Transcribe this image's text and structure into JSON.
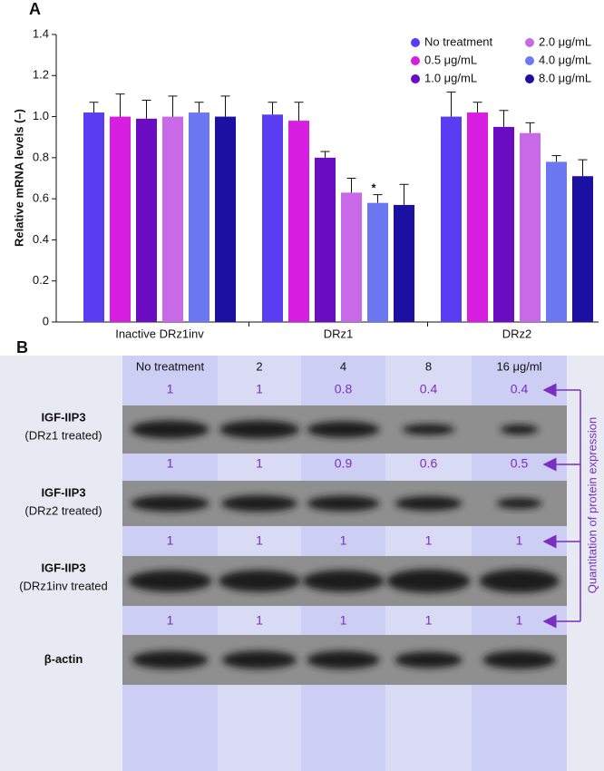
{
  "panel_labels": [
    "A",
    "B"
  ],
  "chart_data": {
    "type": "bar",
    "y_label": "Relative mRNA levels (–)",
    "categories": [
      "Inactive DRz1inv",
      "DRz1",
      "DRz2"
    ],
    "series": [
      {
        "name": "No treatment",
        "color": "#5a3cf2",
        "values": [
          1.02,
          1.01,
          1.0
        ],
        "errors": [
          0.05,
          0.06,
          0.12
        ]
      },
      {
        "name": "0.5 μg/mL",
        "color": "#d81ee0",
        "values": [
          1.0,
          0.98,
          1.02
        ],
        "errors": [
          0.11,
          0.09,
          0.05
        ]
      },
      {
        "name": "1.0 μg/mL",
        "color": "#6a0cc2",
        "values": [
          0.99,
          0.8,
          0.95
        ],
        "errors": [
          0.09,
          0.03,
          0.08
        ]
      },
      {
        "name": "2.0 μg/mL",
        "color": "#c86ae8",
        "values": [
          1.0,
          0.63,
          0.92
        ],
        "errors": [
          0.1,
          0.07,
          0.05
        ]
      },
      {
        "name": "4.0 μg/mL",
        "color": "#6b78f2",
        "values": [
          1.02,
          0.58,
          0.78
        ],
        "errors": [
          0.05,
          0.04,
          0.03
        ]
      },
      {
        "name": "8.0 μg/mL",
        "color": "#1c10a2",
        "values": [
          1.0,
          0.57,
          0.71
        ],
        "errors": [
          0.1,
          0.1,
          0.08
        ]
      }
    ],
    "annotation": "*",
    "ylim": [
      0,
      1.4
    ],
    "yticks": [
      0,
      0.2,
      0.4,
      0.6,
      0.8,
      {
        "value": 1,
        "label": "1.0"
      },
      1.2,
      1.4
    ]
  },
  "blot": {
    "columns": [
      "No treatment",
      "2",
      "4",
      "8",
      "16 μg/ml"
    ],
    "rows": [
      {
        "label": "IGF-IIP3",
        "sublabel": "(DRz1 treated)",
        "values": [
          1,
          1,
          0.8,
          0.4,
          0.4
        ]
      },
      {
        "label": "IGF-IIP3",
        "sublabel": "(DRz2 treated)",
        "values": [
          1,
          1,
          0.9,
          0.6,
          0.5
        ]
      },
      {
        "label": "IGF-IIP3",
        "sublabel": "(DRz1inv treated",
        "values": [
          1,
          1,
          1,
          1,
          1
        ]
      },
      {
        "label": "β-actin",
        "values": [
          1,
          1,
          1,
          1,
          1
        ]
      }
    ],
    "side_label": "Quantitation of protein expression"
  }
}
